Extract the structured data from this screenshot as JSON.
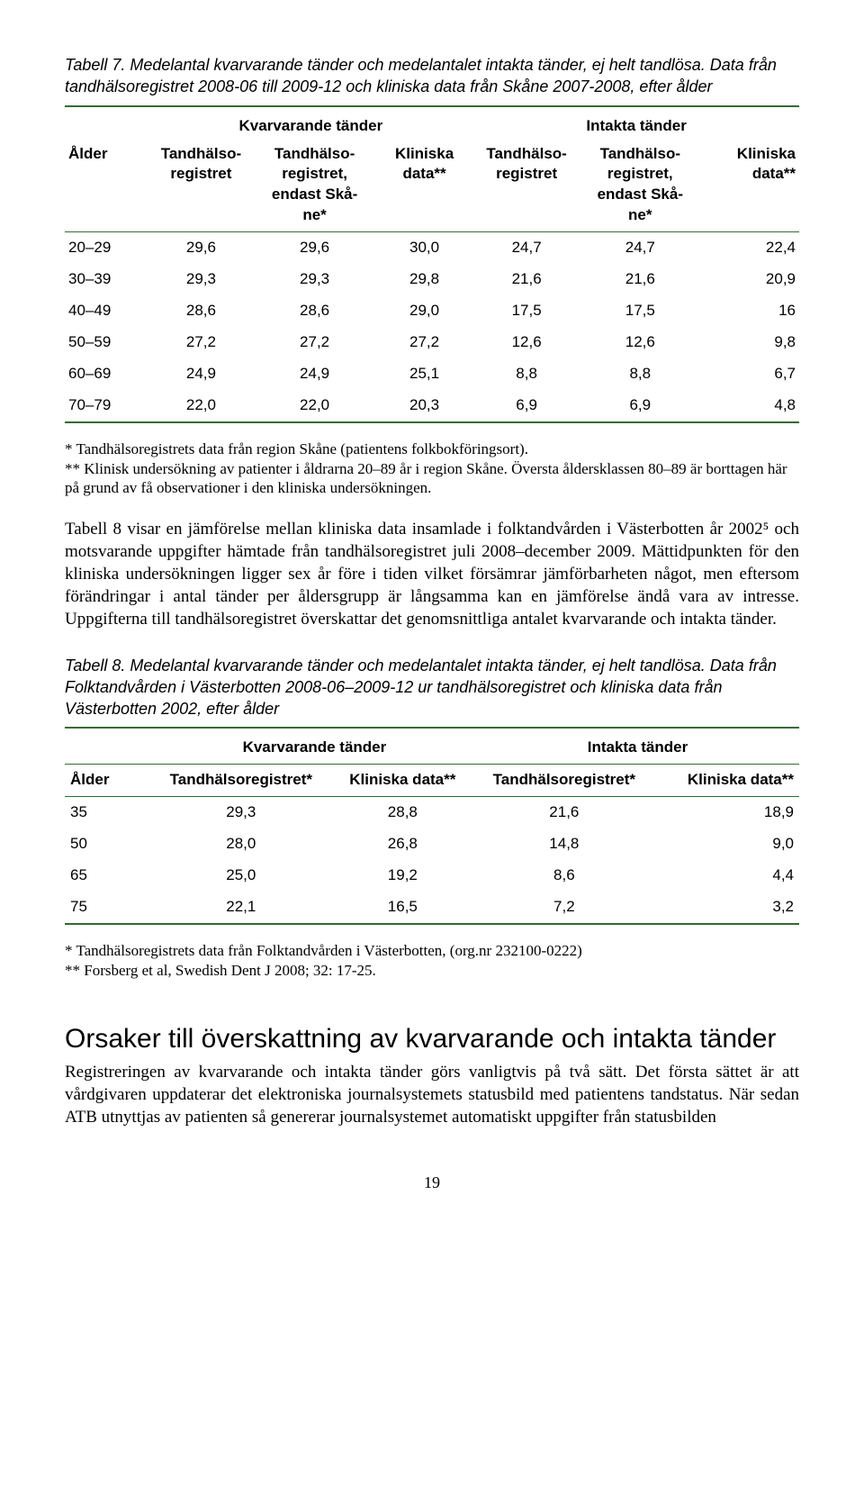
{
  "table7": {
    "caption": "Tabell 7. Medelantal kvarvarande tänder och medelantalet intakta tänder, ej helt tandlösa. Data från tandhälsoregistret 2008-06 till 2009-12 och kliniska data från Skåne 2007-2008, efter ålder",
    "group_headers": {
      "left": "Kvarvarande tänder",
      "right": "Intakta tänder"
    },
    "col_headers": {
      "c0": "Ålder",
      "c1": "Tandhälso-\nregistret",
      "c2": "Tandhälso-\nregistret,\nendast Skå-\nne*",
      "c3": "Kliniska\ndata**",
      "c4": "Tandhälso-\nregistret",
      "c5": "Tandhälso-\nregistret,\nendast Skå-\nne*",
      "c6": "Kliniska\ndata**"
    },
    "rows": [
      {
        "a": "20–29",
        "b": "29,6",
        "c": "29,6",
        "d": "30,0",
        "e": "24,7",
        "f": "24,7",
        "g": "22,4"
      },
      {
        "a": "30–39",
        "b": "29,3",
        "c": "29,3",
        "d": "29,8",
        "e": "21,6",
        "f": "21,6",
        "g": "20,9"
      },
      {
        "a": "40–49",
        "b": "28,6",
        "c": "28,6",
        "d": "29,0",
        "e": "17,5",
        "f": "17,5",
        "g": "16"
      },
      {
        "a": "50–59",
        "b": "27,2",
        "c": "27,2",
        "d": "27,2",
        "e": "12,6",
        "f": "12,6",
        "g": "9,8"
      },
      {
        "a": "60–69",
        "b": "24,9",
        "c": "24,9",
        "d": "25,1",
        "e": "8,8",
        "f": "8,8",
        "g": "6,7"
      },
      {
        "a": "70–79",
        "b": "22,0",
        "c": "22,0",
        "d": "20,3",
        "e": "6,9",
        "f": "6,9",
        "g": "4,8"
      }
    ],
    "footnote": "* Tandhälsoregistrets data från region Skåne (patientens folkbokföringsort).\n** Klinisk undersökning av patienter i åldrarna 20–89 år i region Skåne. Översta åldersklassen 80–89 är borttagen här på grund av få observationer i den kliniska undersökningen."
  },
  "para1": "Tabell 8 visar en jämförelse mellan kliniska data insamlade i folktandvården i Västerbotten år 2002⁵ och motsvarande uppgifter hämtade från tandhälsoregistret juli 2008–december 2009. Mättidpunkten för den kliniska undersökningen ligger sex år före i tiden vilket försämrar jämförbarheten något, men eftersom förändringar i antal tänder per åldersgrupp är långsamma kan en jämförelse ändå vara av intresse. Uppgifterna till tandhälsoregistret överskattar det genomsnittliga antalet kvarvarande och intakta tänder.",
  "table8": {
    "caption": "Tabell 8. Medelantal kvarvarande tänder och medelantalet intakta tänder, ej helt tandlösa. Data från Folktandvården i Västerbotten 2008-06–2009-12 ur tandhälsoregistret och kliniska data från Västerbotten 2002, efter ålder",
    "group_headers": {
      "left": "Kvarvarande tänder",
      "right": "Intakta tänder"
    },
    "col_headers": {
      "c0": "Ålder",
      "c1": "Tandhälsoregistret*",
      "c2": "Kliniska data**",
      "c3": "Tandhälsoregistret*",
      "c4": "Kliniska data**"
    },
    "rows": [
      {
        "a": "35",
        "b": "29,3",
        "c": "28,8",
        "d": "21,6",
        "e": "18,9"
      },
      {
        "a": "50",
        "b": "28,0",
        "c": "26,8",
        "d": "14,8",
        "e": "9,0"
      },
      {
        "a": "65",
        "b": "25,0",
        "c": "19,2",
        "d": "8,6",
        "e": "4,4"
      },
      {
        "a": "75",
        "b": "22,1",
        "c": "16,5",
        "d": "7,2",
        "e": "3,2"
      }
    ],
    "footnote": "*   Tandhälsoregistrets data från Folktandvården i Västerbotten, (org.nr 232100-0222)\n** Forsberg et al, Swedish Dent J 2008; 32: 17-25."
  },
  "section": {
    "title": "Orsaker till överskattning av kvarvarande och intakta tänder",
    "para": "Registreringen av kvarvarande och intakta tänder görs vanligtvis på två sätt. Det första sättet är att vårdgivaren uppdaterar det elektroniska journalsystemets statusbild med patientens tandstatus. När sedan ATB utnyttjas av patienten så genererar journalsystemet automatiskt uppgifter från statusbilden"
  },
  "page_number": "19"
}
